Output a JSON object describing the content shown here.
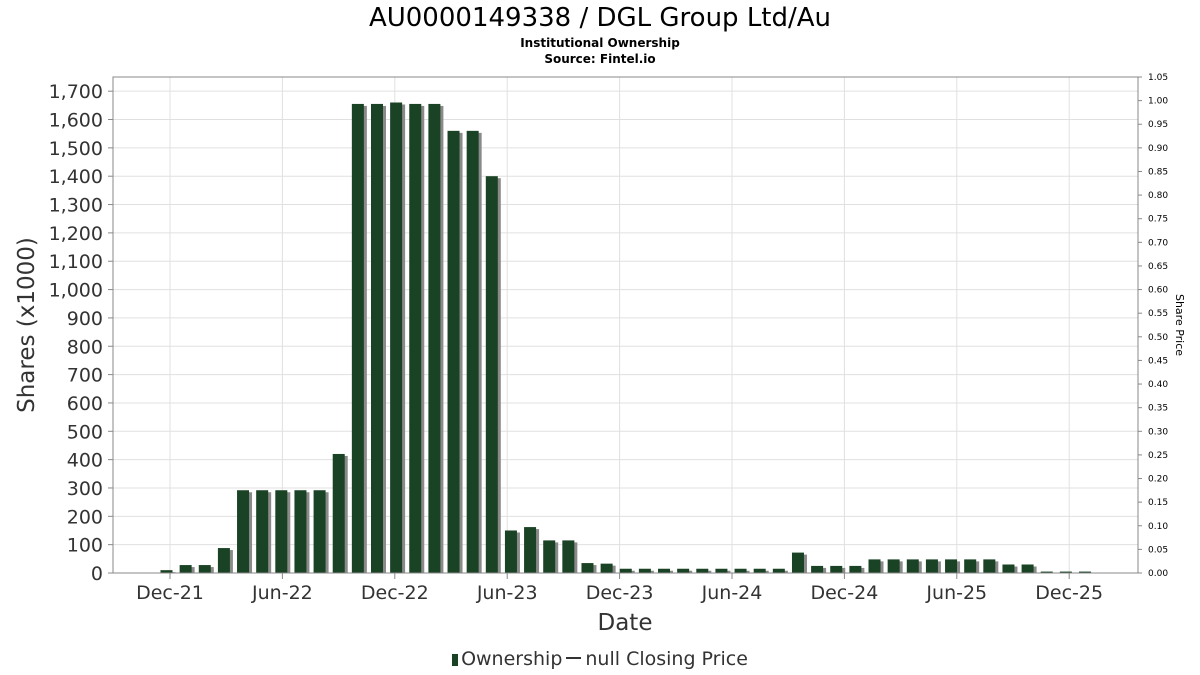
{
  "header": {
    "title": "AU0000149338 / DGL Group Ltd/Au",
    "subtitle1": "Institutional Ownership",
    "subtitle2": "Source: Fintel.io"
  },
  "legend": {
    "ownership_label": "Ownership",
    "price_label": "null Closing Price"
  },
  "colors": {
    "bar": "#1a4224",
    "bar_shadow": "#8a8a8a",
    "grid": "#e0e0e0",
    "axis": "#888888"
  },
  "chart_data": {
    "type": "bar",
    "title": "AU0000149338 / DGL Group Ltd/Au",
    "xlabel": "Date",
    "ylabel": "Shares (x1000)",
    "y2label": "Share Price",
    "ylim": [
      0,
      1750
    ],
    "y2lim": [
      0,
      1.05
    ],
    "grid": true,
    "legend_position": "bottom",
    "yticks": [
      "0",
      "100",
      "200",
      "300",
      "400",
      "500",
      "600",
      "700",
      "800",
      "900",
      "1,000",
      "1,100",
      "1,200",
      "1,300",
      "1,400",
      "1,500",
      "1,600",
      "1,700"
    ],
    "y2ticks": [
      "0.00",
      "0.05",
      "0.10",
      "0.15",
      "0.20",
      "0.25",
      "0.30",
      "0.35",
      "0.40",
      "0.45",
      "0.50",
      "0.55",
      "0.60",
      "0.65",
      "0.70",
      "0.75",
      "0.80",
      "0.85",
      "0.90",
      "0.95",
      "1.00",
      "1.05"
    ],
    "xticks": [
      "Dec-21",
      "Jun-22",
      "Dec-22",
      "Jun-23",
      "Dec-23",
      "Jun-24",
      "Dec-24",
      "Jun-25",
      "Dec-25"
    ],
    "series": [
      {
        "name": "Ownership",
        "values": [
          10,
          28,
          28,
          88,
          292,
          292,
          292,
          292,
          292,
          420,
          1655,
          1655,
          1660,
          1655,
          1655,
          1560,
          1560,
          1400,
          150,
          162,
          115,
          115,
          35,
          33,
          15,
          15,
          15,
          15,
          15,
          15,
          15,
          15,
          15,
          72,
          25,
          25,
          25,
          48,
          48,
          48,
          48,
          48,
          48,
          48,
          30,
          30,
          5,
          5,
          5
        ]
      }
    ]
  }
}
